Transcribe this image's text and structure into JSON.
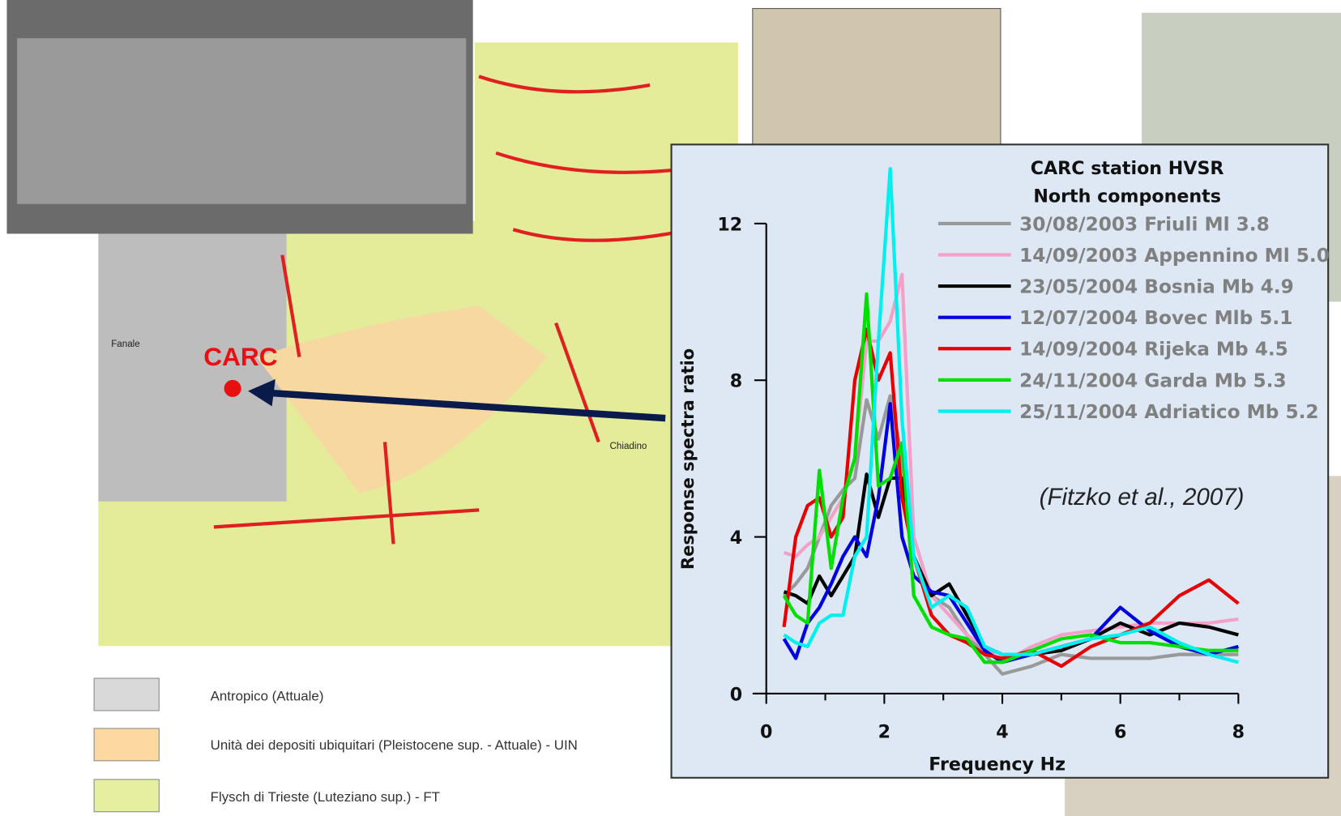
{
  "chart_data": {
    "type": "line",
    "title": "CARC station HVSR",
    "subtitle": "North components",
    "x_label": "Frequency Hz",
    "y_label": "Response spectra ratio",
    "annotation": "(Fitzko et al., 2007)",
    "xlim": [
      0,
      8
    ],
    "xticks": [
      0,
      2,
      4,
      6,
      8
    ],
    "ylim": [
      0,
      12
    ],
    "yticks": [
      0,
      4,
      8,
      12
    ],
    "x": [
      0.3,
      0.5,
      0.7,
      0.9,
      1.1,
      1.3,
      1.5,
      1.7,
      1.9,
      2.1,
      2.3,
      2.5,
      2.8,
      3.1,
      3.4,
      3.7,
      4,
      4.5,
      5,
      5.5,
      6,
      6.5,
      7,
      7.5,
      8
    ],
    "series": [
      {
        "name": "30/08/2003 Friuli  Ml 3.8",
        "color": "#999999",
        "values": [
          2.5,
          2.8,
          3.2,
          4,
          4.8,
          5.2,
          5.5,
          7.5,
          6.5,
          7.6,
          6,
          3.5,
          2.5,
          2.2,
          1.5,
          1,
          0.5,
          0.7,
          1,
          0.9,
          0.9,
          0.9,
          1,
          1,
          1
        ]
      },
      {
        "name": "14/09/2003 Appennino Ml 5.0",
        "color": "#f4a0c8",
        "values": [
          3.6,
          3.5,
          3.8,
          4,
          4.5,
          5,
          6,
          9,
          9,
          9.5,
          10.7,
          4,
          2.5,
          2,
          1.5,
          1.2,
          0.8,
          1.2,
          1.5,
          1.6,
          1.7,
          1.8,
          1.8,
          1.8,
          1.9
        ]
      },
      {
        "name": "23/05/2004 Bosnia Mb 4.9",
        "color": "#000000",
        "values": [
          2.6,
          2.5,
          2.3,
          3,
          2.5,
          3,
          3.5,
          5.6,
          4.5,
          5.5,
          5.5,
          3.5,
          2.5,
          2.8,
          2,
          1.2,
          1,
          1,
          1.1,
          1.4,
          1.8,
          1.5,
          1.8,
          1.7,
          1.5
        ]
      },
      {
        "name": "12/07/2004 Bovec Mlb 5.1",
        "color": "#0000e0",
        "values": [
          1.4,
          0.9,
          1.8,
          2.2,
          2.8,
          3.5,
          4,
          3.5,
          5,
          7.4,
          4,
          3,
          2.6,
          2.5,
          1.8,
          1.1,
          0.8,
          1,
          1.2,
          1.4,
          2.2,
          1.6,
          1.2,
          1,
          1.2
        ]
      },
      {
        "name": "14/09/2004 Rijeka Mb 4.5",
        "color": "#e80000",
        "values": [
          1.7,
          4,
          4.8,
          5,
          4,
          4.5,
          8,
          9.3,
          8,
          8.7,
          5,
          3.5,
          2,
          1.5,
          1.3,
          1,
          0.9,
          1.1,
          0.7,
          1.2,
          1.5,
          1.8,
          2.5,
          2.9,
          2.3
        ]
      },
      {
        "name": "24/11/2004 Garda Mb 5.3",
        "color": "#00e000",
        "values": [
          2.5,
          2,
          1.8,
          5.7,
          3.2,
          5,
          6,
          10.2,
          5.3,
          5.5,
          6.4,
          2.5,
          1.7,
          1.5,
          1.4,
          0.8,
          0.8,
          1.1,
          1.4,
          1.5,
          1.3,
          1.3,
          1.2,
          1.1,
          1.1
        ]
      },
      {
        "name": "25/11/2004 Adriatico Mb 5.2",
        "color": "#00f0f0",
        "values": [
          1.5,
          1.3,
          1.2,
          1.8,
          2,
          2,
          3.5,
          4,
          9,
          13.4,
          7,
          3.5,
          2.2,
          2.5,
          2.2,
          1.2,
          1,
          1,
          1.2,
          1.4,
          1.5,
          1.7,
          1.3,
          1,
          0.8
        ]
      }
    ]
  },
  "map": {
    "labels": [
      "CARC",
      "Fanale",
      "Chiadino"
    ],
    "legend": [
      "Antropico (Attuale)",
      "Unità dei depositi ubiquitari (Pleistocene sup. - Attuale) - UIN",
      "Flysch di Trieste (Luteziano sup.) - FT"
    ]
  }
}
